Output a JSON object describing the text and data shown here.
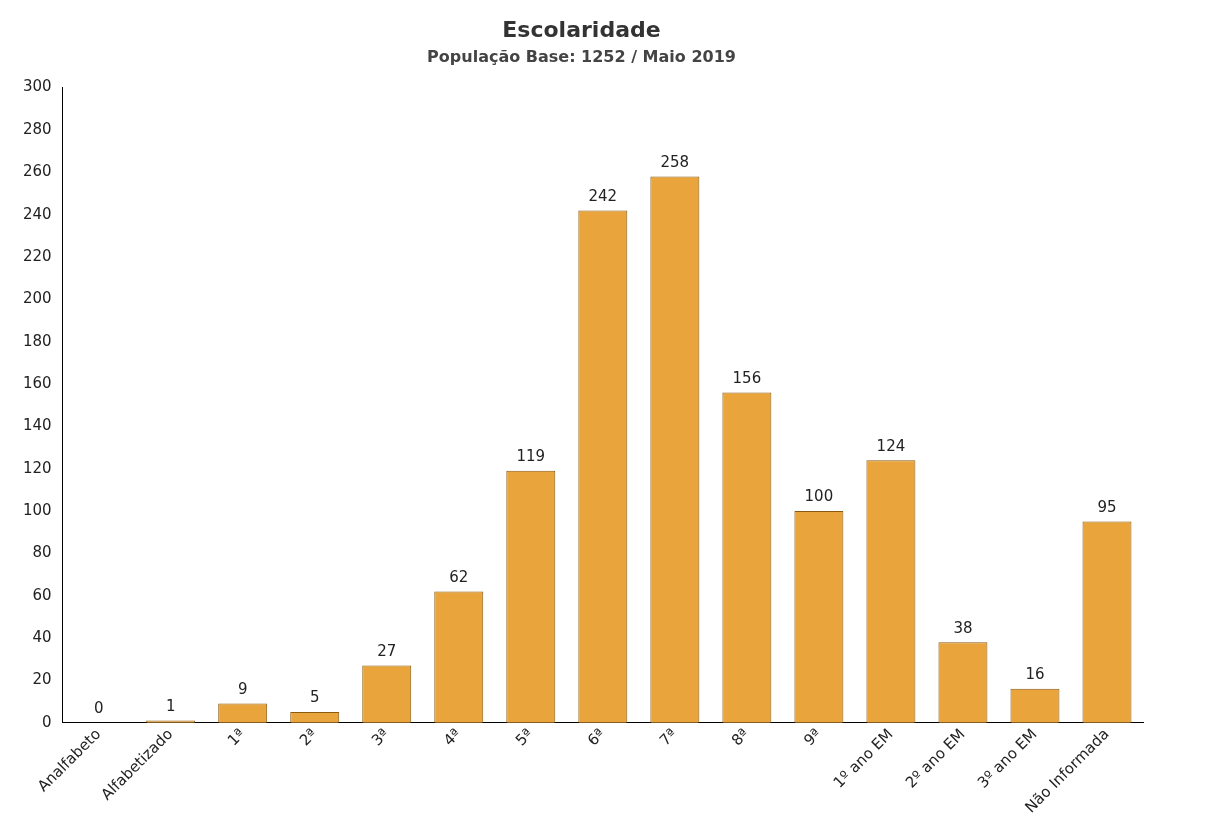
{
  "chart_data": {
    "type": "bar",
    "title": "Escolaridade",
    "subtitle": "População Base: 1252 / Maio 2019",
    "categories": [
      "Analfabeto",
      "Alfabetizado",
      "1ª",
      "2ª",
      "3ª",
      "4ª",
      "5ª",
      "6ª",
      "7ª",
      "8ª",
      "9ª",
      "1º ano EM",
      "2º ano EM",
      "3º ano EM",
      "Não Informada"
    ],
    "values": [
      0,
      1,
      9,
      5,
      27,
      62,
      119,
      242,
      258,
      156,
      100,
      124,
      38,
      16,
      95
    ],
    "color": "#e9a53c",
    "ylim": [
      0,
      300
    ],
    "yticks": [
      0,
      20,
      40,
      60,
      80,
      100,
      120,
      140,
      160,
      180,
      200,
      220,
      240,
      260,
      280,
      300
    ],
    "grid": false,
    "legend": false,
    "data_labels": true
  }
}
